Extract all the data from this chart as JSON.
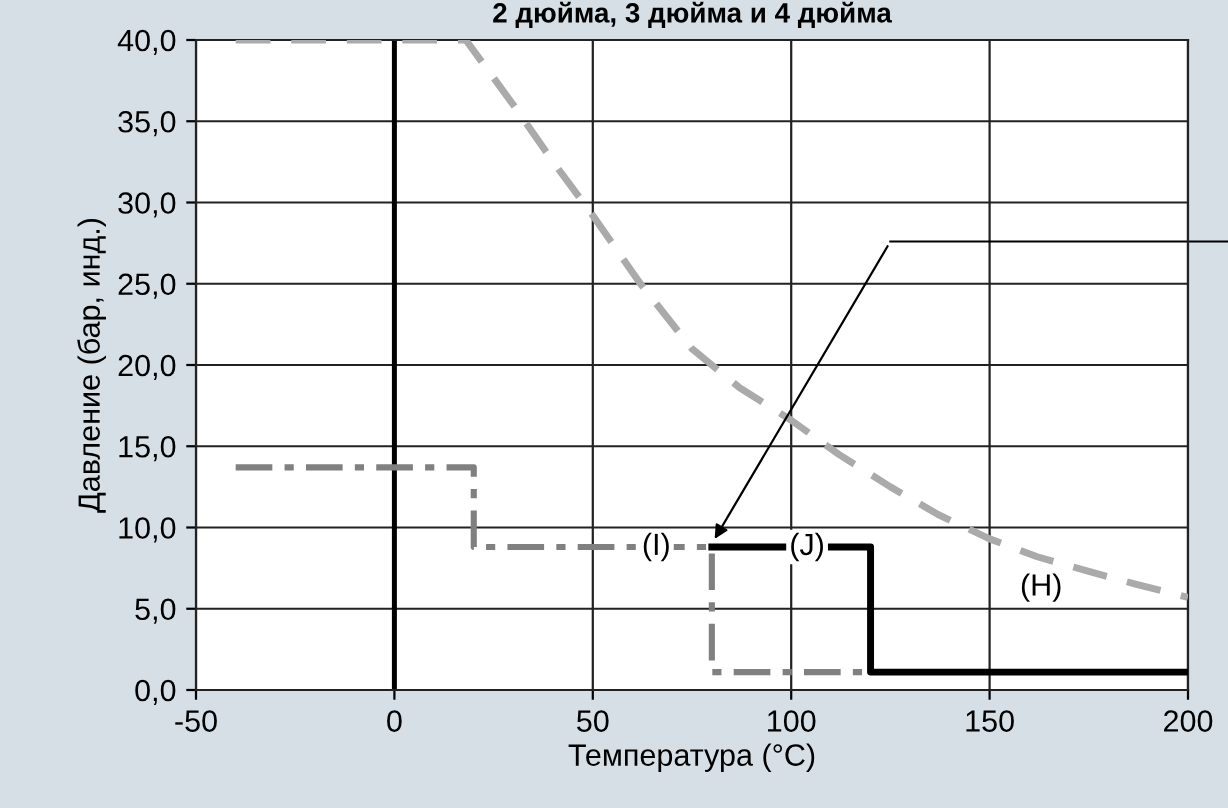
{
  "chart_data": {
    "type": "line",
    "title": "2 дюйма, 3 дюйма и 4 дюйма",
    "xlabel": "Температура (°C)",
    "ylabel": "Давление (бар, инд.)",
    "series": [
      {
        "color": "#aaaaaa",
        "line_style": "dashed",
        "x": [
          -40,
          18,
          30,
          40,
          50,
          62,
          75,
          87,
          100,
          112,
          125,
          137,
          150,
          162,
          175,
          187,
          200
        ],
        "values": [
          40,
          40,
          36,
          32.5,
          29.2,
          25,
          21,
          18.6,
          16.6,
          14.5,
          12.5,
          10.8,
          9.3,
          8.2,
          7.3,
          6.5,
          5.7
        ]
      },
      {
        "color": "#808080",
        "line_style": "dashdot",
        "x": [
          -40,
          20,
          20,
          80,
          80,
          120
        ],
        "values": [
          13.7,
          13.7,
          8.8,
          8.8,
          1.1,
          1.1
        ]
      },
      {
        "color": "#000000",
        "line_style": "solid",
        "x": [
          80,
          120,
          120,
          200
        ],
        "values": [
          8.8,
          8.8,
          1.1,
          1.1
        ]
      }
    ],
    "annotations": [
      {
        "text": "(I)",
        "x": 66,
        "y": 8.8
      },
      {
        "text": "(J)",
        "x": 104,
        "y": 8.8
      },
      {
        "text": "(H)",
        "x": 163,
        "y": 6.3
      }
    ],
    "ref_lines": [
      {
        "axis": "x",
        "value": 0,
        "color": "#000000"
      }
    ],
    "xlim": [
      -50,
      200
    ],
    "xticks": [
      -50,
      0,
      50,
      100,
      150,
      200
    ],
    "ylim": [
      0,
      40
    ],
    "yticks": [
      {
        "value": 0,
        "label": "0,0"
      },
      {
        "value": 5,
        "label": "5,0"
      },
      {
        "value": 10,
        "label": "10,0"
      },
      {
        "value": 15,
        "label": "15,0"
      },
      {
        "value": 20,
        "label": "20,0"
      },
      {
        "value": 25,
        "label": "25,0"
      },
      {
        "value": 30,
        "label": "30,0"
      },
      {
        "value": 35,
        "label": "35,0"
      },
      {
        "value": 40,
        "label": "40,0"
      }
    ],
    "grid": true,
    "legend": false
  }
}
